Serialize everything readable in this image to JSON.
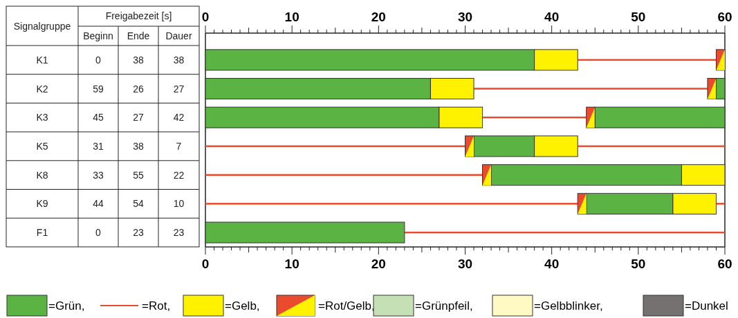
{
  "chart_data": {
    "type": "bar",
    "orientation": "horizontal",
    "categories": [
      null,
      null,
      null,
      null,
      null,
      null,
      null
    ],
    "series": [
      {
        "name": "=Grün,",
        "color": "#5bb344",
        "base": [
          0,
          0,
          0,
          31,
          33,
          44,
          0
        ],
        "values": [
          38,
          26,
          27,
          7,
          22,
          10,
          23
        ]
      },
      {
        "line_style": "solid",
        "name": "=Rot,",
        "color": "#ea4a2e",
        "base": [
          43,
          31,
          32,
          0,
          0,
          0,
          23
        ],
        "values": [
          16,
          27,
          12,
          30,
          32,
          43,
          37
        ]
      },
      {
        "name": "=Gelb,",
        "color": "#fff200",
        "base": [
          38,
          26,
          27,
          38,
          55,
          54,
          null
        ],
        "values": [
          5,
          5,
          5,
          5,
          5,
          5,
          null
        ]
      },
      {
        "marker": "triangle",
        "name": "=Rot/Gelb,",
        "color": "#ea4a2e",
        "base": [
          59,
          58,
          44,
          30,
          32,
          43,
          null
        ],
        "values": [
          1,
          1,
          1,
          1,
          1,
          1,
          null
        ]
      },
      {
        "name": "=Grünpfeil,",
        "color": "#c5e0b4",
        "values": [
          null,
          null,
          null,
          null,
          null,
          null,
          null
        ]
      },
      {
        "name": "=Gelbblinker,",
        "color": "#fff9c4",
        "values": [
          null,
          null,
          null,
          null,
          null,
          null,
          null
        ]
      },
      {
        "name": "=Dunkel",
        "color": "#767171",
        "values": [
          null,
          null,
          null,
          null,
          null,
          null,
          null
        ]
      },
      {
        "color": "#5bb344",
        "base": [
          null,
          59,
          45,
          null,
          null,
          null,
          null
        ],
        "values": [
          null,
          1,
          15,
          null,
          null,
          null,
          null
        ]
      },
      {
        "line_style": "solid",
        "color": "#ea4a2e",
        "base": [
          null,
          null,
          null,
          43,
          null,
          59,
          null
        ],
        "values": [
          null,
          null,
          null,
          17,
          null,
          1,
          null
        ]
      }
    ],
    "xlim": [
      0,
      60
    ],
    "xticks": [
      0,
      {
        "value": 1,
        "label": null
      },
      {
        "value": 2,
        "label": null
      },
      {
        "value": 3,
        "label": null
      },
      {
        "value": 4,
        "label": null
      },
      {
        "value": 5,
        "label": null
      },
      {
        "value": 6,
        "label": null
      },
      {
        "value": 7,
        "label": null
      },
      {
        "value": 8,
        "label": null
      },
      {
        "value": 9,
        "label": null
      },
      10,
      {
        "value": 11,
        "label": null
      },
      {
        "value": 12,
        "label": null
      },
      {
        "value": 13,
        "label": null
      },
      {
        "value": 14,
        "label": null
      },
      {
        "value": 15,
        "label": null
      },
      {
        "value": 16,
        "label": null
      },
      {
        "value": 17,
        "label": null
      },
      {
        "value": 18,
        "label": null
      },
      {
        "value": 19,
        "label": null
      },
      20,
      {
        "value": 21,
        "label": null
      },
      {
        "value": 22,
        "label": null
      },
      {
        "value": 23,
        "label": null
      },
      {
        "value": 24,
        "label": null
      },
      {
        "value": 25,
        "label": null
      },
      {
        "value": 26,
        "label": null
      },
      {
        "value": 27,
        "label": null
      },
      {
        "value": 28,
        "label": null
      },
      {
        "value": 29,
        "label": null
      },
      30,
      {
        "value": 31,
        "label": null
      },
      {
        "value": 32,
        "label": null
      },
      {
        "value": 33,
        "label": null
      },
      {
        "value": 34,
        "label": null
      },
      {
        "value": 35,
        "label": null
      },
      {
        "value": 36,
        "label": null
      },
      {
        "value": 37,
        "label": null
      },
      {
        "value": 38,
        "label": null
      },
      {
        "value": 39,
        "label": null
      },
      40,
      {
        "value": 41,
        "label": null
      },
      {
        "value": 42,
        "label": null
      },
      {
        "value": 43,
        "label": null
      },
      {
        "value": 44,
        "label": null
      },
      {
        "value": 45,
        "label": null
      },
      {
        "value": 46,
        "label": null
      },
      {
        "value": 47,
        "label": null
      },
      {
        "value": 48,
        "label": null
      },
      {
        "value": 49,
        "label": null
      },
      50,
      {
        "value": 51,
        "label": null
      },
      {
        "value": 52,
        "label": null
      },
      {
        "value": 53,
        "label": null
      },
      {
        "value": 54,
        "label": null
      },
      {
        "value": 55,
        "label": null
      },
      {
        "value": 56,
        "label": null
      },
      {
        "value": 57,
        "label": null
      },
      {
        "value": 58,
        "label": null
      },
      {
        "value": 59,
        "label": null
      },
      60
    ],
    "x2lim": [
      0,
      60
    ],
    "x2ticks": [
      0,
      {
        "value": 1,
        "label": null
      },
      {
        "value": 2,
        "label": null
      },
      {
        "value": 3,
        "label": null
      },
      {
        "value": 4,
        "label": null
      },
      {
        "value": 5,
        "label": null
      },
      {
        "value": 6,
        "label": null
      },
      {
        "value": 7,
        "label": null
      },
      {
        "value": 8,
        "label": null
      },
      {
        "value": 9,
        "label": null
      },
      10,
      {
        "value": 11,
        "label": null
      },
      {
        "value": 12,
        "label": null
      },
      {
        "value": 13,
        "label": null
      },
      {
        "value": 14,
        "label": null
      },
      {
        "value": 15,
        "label": null
      },
      {
        "value": 16,
        "label": null
      },
      {
        "value": 17,
        "label": null
      },
      {
        "value": 18,
        "label": null
      },
      {
        "value": 19,
        "label": null
      },
      20,
      {
        "value": 21,
        "label": null
      },
      {
        "value": 22,
        "label": null
      },
      {
        "value": 23,
        "label": null
      },
      {
        "value": 24,
        "label": null
      },
      {
        "value": 25,
        "label": null
      },
      {
        "value": 26,
        "label": null
      },
      {
        "value": 27,
        "label": null
      },
      {
        "value": 28,
        "label": null
      },
      {
        "value": 29,
        "label": null
      },
      30,
      {
        "value": 31,
        "label": null
      },
      {
        "value": 32,
        "label": null
      },
      {
        "value": 33,
        "label": null
      },
      {
        "value": 34,
        "label": null
      },
      {
        "value": 35,
        "label": null
      },
      {
        "value": 36,
        "label": null
      },
      {
        "value": 37,
        "label": null
      },
      {
        "value": 38,
        "label": null
      },
      {
        "value": 39,
        "label": null
      },
      40,
      {
        "value": 41,
        "label": null
      },
      {
        "value": 42,
        "label": null
      },
      {
        "value": 43,
        "label": null
      },
      {
        "value": 44,
        "label": null
      },
      {
        "value": 45,
        "label": null
      },
      {
        "value": 46,
        "label": null
      },
      {
        "value": 47,
        "label": null
      },
      {
        "value": 48,
        "label": null
      },
      {
        "value": 49,
        "label": null
      },
      50,
      {
        "value": 51,
        "label": null
      },
      {
        "value": 52,
        "label": null
      },
      {
        "value": 53,
        "label": null
      },
      {
        "value": 54,
        "label": null
      },
      {
        "value": 55,
        "label": null
      },
      {
        "value": 56,
        "label": null
      },
      {
        "value": 57,
        "label": null
      },
      {
        "value": 58,
        "label": null
      },
      {
        "value": 59,
        "label": null
      },
      60
    ],
    "annotations": [
      "Signalgruppe",
      "Freigabezeit [s]",
      "Beginn",
      "Ende",
      "Dauer",
      "K1",
      "0",
      "38",
      "38",
      "K2",
      "59",
      "26",
      "27",
      "K3",
      "45",
      "27",
      "42",
      "K5",
      "31",
      "38",
      "7",
      "K8",
      "33",
      "55",
      "22",
      "K9",
      "44",
      "54",
      "10",
      "F1",
      "0",
      "23",
      "23"
    ],
    "legend": "bottom"
  }
}
